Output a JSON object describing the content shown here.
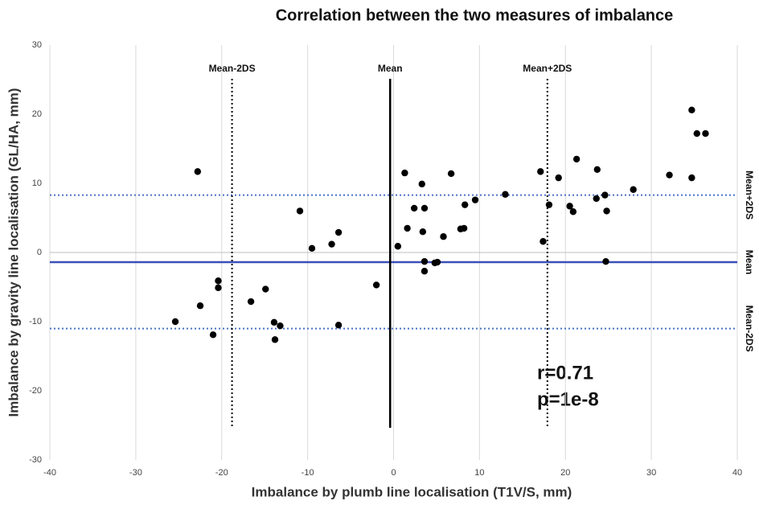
{
  "chart_data": {
    "type": "scatter",
    "title": "Correlation between the two measures of imbalance",
    "x_label": "Imbalance by plumb line localisation (T1V/S, mm)",
    "y_label": "Imbalance by gravity line localisation (GL/HA, mm)",
    "xlim": [
      -40,
      40
    ],
    "ylim": [
      -30,
      30
    ],
    "xticks": [
      -40,
      -30,
      -20,
      -10,
      0,
      10,
      20,
      30,
      40
    ],
    "yticks": [
      -30,
      -20,
      -10,
      0,
      10,
      20,
      30
    ],
    "grid": "x",
    "color": "#000000",
    "x": [
      -22.8,
      -25.4,
      -22.5,
      -21.0,
      -20.4,
      -20.4,
      -16.6,
      -14.9,
      -13.9,
      -13.8,
      -13.2,
      -10.9,
      -9.5,
      -7.2,
      -6.4,
      -6.4,
      -2.0,
      0.5,
      1.3,
      1.6,
      2.4,
      3.3,
      3.4,
      3.6,
      3.6,
      3.6,
      4.8,
      5.1,
      5.8,
      6.7,
      7.8,
      8.2,
      8.3,
      9.5,
      13.0,
      17.1,
      17.4,
      18.1,
      19.2,
      20.5,
      20.9,
      21.3,
      23.6,
      23.7,
      24.6,
      24.7,
      24.8,
      27.9,
      32.1,
      34.7,
      34.7,
      35.3,
      36.3
    ],
    "values": [
      11.7,
      -10.0,
      -7.7,
      -11.9,
      -4.1,
      -5.1,
      -7.1,
      -5.3,
      -10.1,
      -12.6,
      -10.6,
      6.0,
      0.6,
      1.2,
      2.9,
      -10.5,
      -4.7,
      0.9,
      11.5,
      3.5,
      6.4,
      9.9,
      3.0,
      6.4,
      -1.3,
      -2.7,
      -1.5,
      -1.4,
      2.3,
      11.4,
      3.4,
      3.5,
      6.9,
      7.6,
      8.4,
      11.7,
      1.6,
      6.9,
      10.8,
      6.7,
      5.9,
      13.5,
      7.8,
      12.0,
      8.3,
      -1.3,
      6.0,
      9.1,
      11.2,
      20.6,
      10.8,
      17.2,
      17.2
    ],
    "vertical_lines": [
      {
        "label": "Mean-2DS",
        "value": -18.8,
        "style": "dotted",
        "color": "#000000"
      },
      {
        "label": "Mean",
        "value": -0.4,
        "style": "solid",
        "color": "#000000"
      },
      {
        "label": "Mean+2DS",
        "value": 17.9,
        "style": "dotted",
        "color": "#000000"
      }
    ],
    "horizontal_lines": [
      {
        "label": "Mean+2DS",
        "value": 8.3,
        "style": "dotted",
        "color": "#4a72c4"
      },
      {
        "label": "Mean",
        "value": -1.4,
        "style": "solid",
        "color": "#3a50b8"
      },
      {
        "label": "Mean-2DS",
        "value": -11.0,
        "style": "dotted",
        "color": "#4a72c4"
      }
    ],
    "annotations": [
      "r=0.71",
      "p=1e-8"
    ]
  }
}
